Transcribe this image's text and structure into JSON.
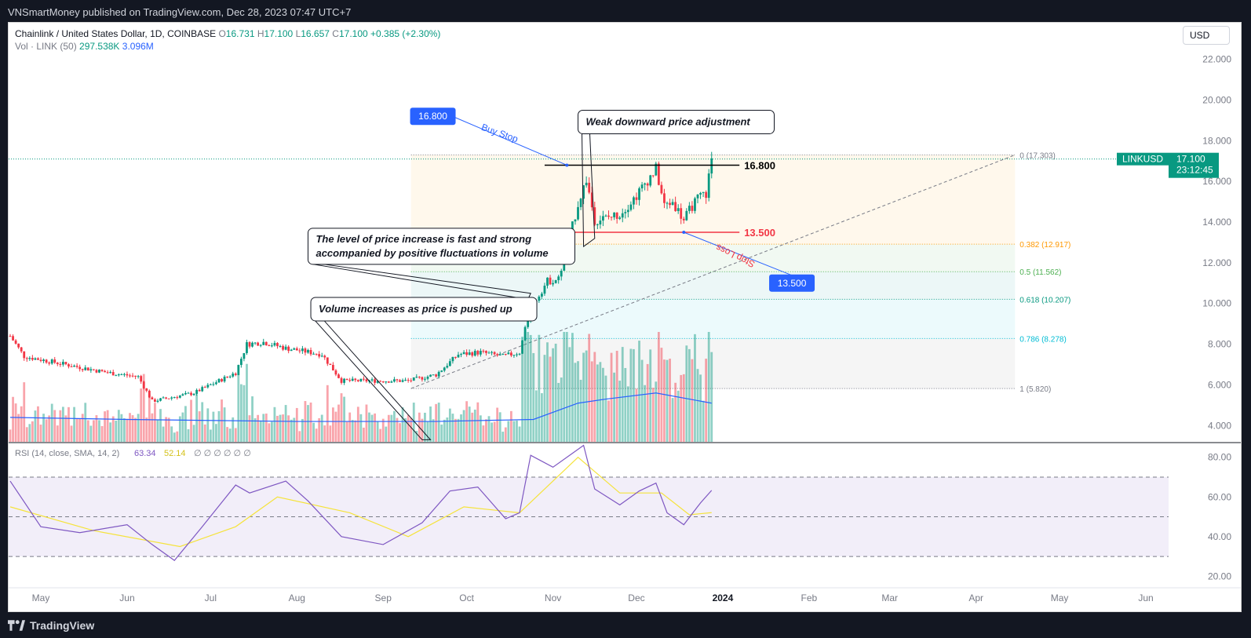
{
  "header": {
    "published": "VNSmartMoney published on TradingView.com, Dec 28, 2023 07:47 UTC+7"
  },
  "footer": {
    "brand": "TradingView"
  },
  "legend": {
    "symbol": "Chainlink / United States Dollar, 1D, COINBASE",
    "o_label": "O",
    "o": "16.731",
    "h_label": "H",
    "h": "17.100",
    "l_label": "L",
    "l": "16.657",
    "c_label": "C",
    "c": "17.100",
    "change": "+0.385 (+2.30%)",
    "vol_label": "Vol · LINK (50)",
    "vol": "297.538K",
    "vol_ma": "3.096M"
  },
  "currency_button": "USD",
  "price_tag": {
    "symbol": "LINKUSD",
    "price": "17.100",
    "countdown": "23:12:45"
  },
  "rsi_legend": {
    "label": "RSI (14, close, SMA, 14, 2)",
    "rsi": "63.34",
    "sma": "52.14",
    "extra": "∅ ∅ ∅ ∅ ∅ ∅"
  },
  "colors": {
    "up": "#089981",
    "down": "#f23645",
    "blue": "#2962ff",
    "rsi": "#7e57c2",
    "rsi_ma": "#f5e33b"
  },
  "chart_data": {
    "type": "candlestick",
    "title": "Chainlink / United States Dollar, 1D, COINBASE",
    "price_axis": {
      "ticks": [
        "22.000",
        "20.000",
        "18.000",
        "16.000",
        "14.000",
        "12.000",
        "10.000",
        "8.000",
        "6.000",
        "4.000"
      ],
      "ylim": [
        3.2,
        23.8
      ]
    },
    "rsi_axis": {
      "ticks": [
        "80.00",
        "60.00",
        "40.00",
        "20.00"
      ],
      "ylim": [
        15,
        87
      ],
      "band": [
        30,
        70
      ],
      "mid": 50
    },
    "time_axis": {
      "ticks": [
        "May",
        "Jun",
        "Jul",
        "Aug",
        "Sep",
        "Oct",
        "Nov",
        "Dec",
        "2024",
        "Feb",
        "Mar",
        "Apr",
        "May",
        "Jun"
      ]
    },
    "price_path": [
      [
        "2023-04-20",
        8.4
      ],
      [
        "2023-04-25",
        7.4
      ],
      [
        "2023-05-10",
        7.0
      ],
      [
        "2023-05-25",
        6.6
      ],
      [
        "2023-06-05",
        6.4
      ],
      [
        "2023-06-10",
        5.2
      ],
      [
        "2023-06-25",
        5.6
      ],
      [
        "2023-07-10",
        6.6
      ],
      [
        "2023-07-14",
        8.0
      ],
      [
        "2023-07-20",
        8.1
      ],
      [
        "2023-07-28",
        7.8
      ],
      [
        "2023-08-10",
        7.5
      ],
      [
        "2023-08-17",
        6.2
      ],
      [
        "2023-09-10",
        6.2
      ],
      [
        "2023-09-20",
        6.5
      ],
      [
        "2023-09-28",
        7.5
      ],
      [
        "2023-10-06",
        7.6
      ],
      [
        "2023-10-14",
        7.4
      ],
      [
        "2023-10-20",
        7.6
      ],
      [
        "2023-10-24",
        9.8
      ],
      [
        "2023-10-30",
        11.1
      ],
      [
        "2023-11-03",
        11.2
      ],
      [
        "2023-11-08",
        13.8
      ],
      [
        "2023-11-10",
        14.9
      ],
      [
        "2023-11-13",
        16.1
      ],
      [
        "2023-11-16",
        14.1
      ],
      [
        "2023-11-20",
        14.2
      ],
      [
        "2023-11-25",
        14.4
      ],
      [
        "2023-12-01",
        15.3
      ],
      [
        "2023-12-04",
        15.9
      ],
      [
        "2023-12-08",
        16.6
      ],
      [
        "2023-12-11",
        14.8
      ],
      [
        "2023-12-14",
        15.0
      ],
      [
        "2023-12-18",
        14.1
      ],
      [
        "2023-12-21",
        14.8
      ],
      [
        "2023-12-24",
        15.3
      ],
      [
        "2023-12-26",
        15.4
      ],
      [
        "2023-12-28",
        17.1
      ]
    ],
    "volume_ma_path": [
      [
        "2023-04-20",
        4.4
      ],
      [
        "2023-06-01",
        4.3
      ],
      [
        "2023-08-01",
        4.2
      ],
      [
        "2023-09-20",
        4.2
      ],
      [
        "2023-10-25",
        4.3
      ],
      [
        "2023-11-10",
        5.1
      ],
      [
        "2023-11-20",
        5.3
      ],
      [
        "2023-12-08",
        5.6
      ],
      [
        "2023-12-28",
        5.1
      ]
    ],
    "rsi_path": [
      [
        "2023-04-20",
        68
      ],
      [
        "2023-05-01",
        45
      ],
      [
        "2023-05-15",
        42
      ],
      [
        "2023-06-01",
        46
      ],
      [
        "2023-06-10",
        36
      ],
      [
        "2023-06-18",
        28
      ],
      [
        "2023-06-28",
        45
      ],
      [
        "2023-07-10",
        66
      ],
      [
        "2023-07-15",
        62
      ],
      [
        "2023-07-28",
        68
      ],
      [
        "2023-08-05",
        58
      ],
      [
        "2023-08-17",
        40
      ],
      [
        "2023-09-01",
        36
      ],
      [
        "2023-09-15",
        47
      ],
      [
        "2023-09-25",
        63
      ],
      [
        "2023-10-05",
        65
      ],
      [
        "2023-10-15",
        49
      ],
      [
        "2023-10-20",
        52
      ],
      [
        "2023-10-24",
        81
      ],
      [
        "2023-11-01",
        75
      ],
      [
        "2023-11-08",
        82
      ],
      [
        "2023-11-12",
        86
      ],
      [
        "2023-11-16",
        64
      ],
      [
        "2023-11-25",
        56
      ],
      [
        "2023-12-02",
        63
      ],
      [
        "2023-12-08",
        67
      ],
      [
        "2023-12-12",
        52
      ],
      [
        "2023-12-18",
        46
      ],
      [
        "2023-12-24",
        57
      ],
      [
        "2023-12-28",
        63.3
      ]
    ],
    "rsi_ma_path": [
      [
        "2023-04-20",
        55
      ],
      [
        "2023-05-20",
        43
      ],
      [
        "2023-06-20",
        35
      ],
      [
        "2023-07-10",
        45
      ],
      [
        "2023-07-25",
        60
      ],
      [
        "2023-08-20",
        52
      ],
      [
        "2023-09-10",
        40
      ],
      [
        "2023-09-30",
        55
      ],
      [
        "2023-10-20",
        52
      ],
      [
        "2023-11-10",
        80
      ],
      [
        "2023-11-25",
        62
      ],
      [
        "2023-12-10",
        62
      ],
      [
        "2023-12-20",
        51
      ],
      [
        "2023-12-28",
        52.1
      ]
    ],
    "fibonacci": {
      "levels": [
        {
          "ratio": "0",
          "price": 17.303,
          "label": "0 (17.303)",
          "color": "#787b86"
        },
        {
          "ratio": "0.382",
          "price": 12.917,
          "label": "0.382 (12.917)",
          "color": "#ff9800"
        },
        {
          "ratio": "0.5",
          "price": 11.562,
          "label": "0.5 (11.562)",
          "color": "#4caf50"
        },
        {
          "ratio": "0.618",
          "price": 10.207,
          "label": "0.618 (10.207)",
          "color": "#089981"
        },
        {
          "ratio": "0.786",
          "price": 8.278,
          "label": "0.786 (8.278)",
          "color": "#00bcd4"
        },
        {
          "ratio": "1",
          "price": 5.82,
          "label": "1 (5.820)",
          "color": "#787b86"
        }
      ],
      "start": "2023-09-11",
      "end": "2024-04-15",
      "trend_from": [
        "2023-09-11",
        5.82
      ],
      "trend_to": [
        "2024-04-15",
        17.303
      ]
    },
    "levels": [
      {
        "price": 16.8,
        "label": "16.800",
        "color": "#000000",
        "from": "2023-10-29",
        "to": "2024-01-07"
      },
      {
        "price": 13.5,
        "label": "13.500",
        "color": "#f23645",
        "from": "2023-10-29",
        "to": "2024-01-07"
      }
    ],
    "order_tags": [
      {
        "label": "16.800",
        "name": "Buy Stop",
        "date": "2023-09-18",
        "price": 19.2,
        "anchor": [
          "2023-11-06",
          16.8
        ],
        "color": "#2962ff"
      },
      {
        "label": "13.500",
        "name": "Stop Loss",
        "date": "2024-01-25",
        "price": 11.0,
        "anchor": [
          "2023-12-18",
          13.5
        ],
        "color": "#f23645"
      }
    ],
    "annotations": [
      {
        "text": "Weak downward price adjustment",
        "date": "2023-11-10",
        "price": 19.5
      },
      {
        "text": "The level of price increase is fast and strong",
        "text2": "accompanied by positive fluctuations in volume",
        "date": "2023-08-05",
        "price": 13.7
      },
      {
        "text": "Volume increases as price is pushed up",
        "date": "2023-08-06",
        "price": 10.3
      }
    ],
    "price_marker": 17.1
  }
}
